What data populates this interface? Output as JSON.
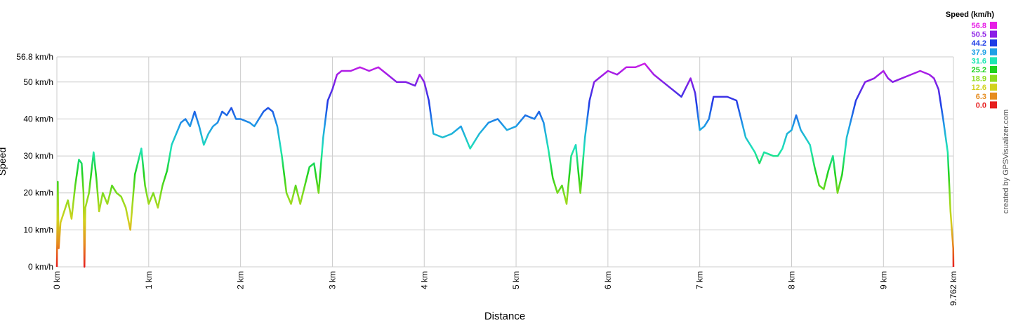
{
  "chart_data": {
    "type": "line",
    "y_label": "Speed",
    "x_label": "Distance",
    "credit": "created by GPSVisualizer.com",
    "legend_title": "Speed (km/h)",
    "legend": [
      {
        "value": 56.8,
        "label": "56.8",
        "color": "#e61ee6"
      },
      {
        "value": 50.5,
        "label": "50.5",
        "color": "#8c1ee6"
      },
      {
        "value": 44.2,
        "label": "44.2",
        "color": "#1e3ce6"
      },
      {
        "value": 37.9,
        "label": "37.9",
        "color": "#1ea0e6"
      },
      {
        "value": 31.6,
        "label": "31.6",
        "color": "#1ee6b4"
      },
      {
        "value": 25.2,
        "label": "25.2",
        "color": "#1ed21e"
      },
      {
        "value": 18.9,
        "label": "18.9",
        "color": "#8cdc1e"
      },
      {
        "value": 12.6,
        "label": "12.6",
        "color": "#d2d21e"
      },
      {
        "value": 6.3,
        "label": "6.3",
        "color": "#e68c1e"
      },
      {
        "value": 0,
        "label": "0.0",
        "color": "#e61e1e"
      }
    ],
    "grid": true,
    "xlim": [
      0,
      9.762
    ],
    "ylim": [
      0,
      56.8
    ],
    "xticks": [
      {
        "value": 0,
        "label": "0 km"
      },
      {
        "value": 1,
        "label": "1 km"
      },
      {
        "value": 2,
        "label": "2 km"
      },
      {
        "value": 3,
        "label": "3 km"
      },
      {
        "value": 4,
        "label": "4 km"
      },
      {
        "value": 5,
        "label": "5 km"
      },
      {
        "value": 6,
        "label": "6 km"
      },
      {
        "value": 7,
        "label": "7 km"
      },
      {
        "value": 8,
        "label": "8 km"
      },
      {
        "value": 9,
        "label": "9 km"
      },
      {
        "value": 9.762,
        "label": "9.762 km"
      }
    ],
    "yticks": [
      {
        "value": 0,
        "label": "0 km/h"
      },
      {
        "value": 10,
        "label": "10 km/h"
      },
      {
        "value": 20,
        "label": "20 km/h"
      },
      {
        "value": 30,
        "label": "30 km/h"
      },
      {
        "value": 40,
        "label": "40 km/h"
      },
      {
        "value": 50,
        "label": "50 km/h"
      },
      {
        "value": 56.8,
        "label": "56.8 km/h"
      }
    ],
    "x": [
      0,
      0.01,
      0.02,
      0.04,
      0.08,
      0.12,
      0.16,
      0.2,
      0.24,
      0.27,
      0.29,
      0.3,
      0.31,
      0.35,
      0.4,
      0.43,
      0.46,
      0.5,
      0.55,
      0.6,
      0.65,
      0.7,
      0.75,
      0.8,
      0.85,
      0.92,
      0.96,
      1,
      1.05,
      1.1,
      1.15,
      1.2,
      1.25,
      1.3,
      1.35,
      1.4,
      1.45,
      1.5,
      1.55,
      1.6,
      1.65,
      1.7,
      1.75,
      1.8,
      1.85,
      1.9,
      1.95,
      2,
      2.1,
      2.15,
      2.2,
      2.25,
      2.3,
      2.35,
      2.4,
      2.45,
      2.5,
      2.55,
      2.6,
      2.65,
      2.7,
      2.75,
      2.8,
      2.85,
      2.9,
      2.95,
      3,
      3.05,
      3.1,
      3.2,
      3.3,
      3.4,
      3.5,
      3.6,
      3.7,
      3.8,
      3.9,
      3.95,
      4,
      4.05,
      4.1,
      4.2,
      4.3,
      4.4,
      4.5,
      4.6,
      4.7,
      4.8,
      4.9,
      5,
      5.1,
      5.2,
      5.25,
      5.3,
      5.35,
      5.4,
      5.45,
      5.5,
      5.55,
      5.6,
      5.65,
      5.7,
      5.75,
      5.8,
      5.85,
      5.9,
      6,
      6.1,
      6.2,
      6.3,
      6.4,
      6.5,
      6.6,
      6.7,
      6.8,
      6.9,
      6.95,
      7,
      7.05,
      7.1,
      7.15,
      7.2,
      7.3,
      7.4,
      7.45,
      7.5,
      7.6,
      7.65,
      7.7,
      7.8,
      7.85,
      7.9,
      7.95,
      8,
      8.05,
      8.1,
      8.15,
      8.2,
      8.25,
      8.3,
      8.35,
      8.4,
      8.45,
      8.5,
      8.55,
      8.6,
      8.7,
      8.8,
      8.9,
      9,
      9.05,
      9.1,
      9.2,
      9.3,
      9.4,
      9.5,
      9.55,
      9.6,
      9.65,
      9.7,
      9.73,
      9.76,
      9.762
    ],
    "values": [
      0,
      23,
      5,
      12,
      15,
      18,
      13,
      22,
      29,
      28,
      20,
      0,
      16,
      20,
      31,
      24,
      15,
      20,
      17,
      22,
      20,
      19,
      16,
      10,
      25,
      32,
      22,
      17,
      20,
      16,
      22,
      26,
      33,
      36,
      39,
      40,
      38,
      42,
      38,
      33,
      36,
      38,
      39,
      42,
      41,
      43,
      40,
      40,
      39,
      38,
      40,
      42,
      43,
      42,
      38,
      30,
      20,
      17,
      22,
      17,
      22,
      27,
      28,
      20,
      35,
      45,
      48,
      52,
      53,
      53,
      54,
      53,
      54,
      52,
      50,
      50,
      49,
      52,
      50,
      45,
      36,
      35,
      36,
      38,
      32,
      36,
      39,
      40,
      37,
      38,
      41,
      40,
      42,
      39,
      32,
      24,
      20,
      22,
      17,
      30,
      33,
      20,
      35,
      45,
      50,
      51,
      53,
      52,
      54,
      54,
      55,
      52,
      50,
      48,
      46,
      51,
      47,
      37,
      38,
      40,
      46,
      46,
      46,
      45,
      40,
      35,
      31,
      28,
      31,
      30,
      30,
      32,
      36,
      37,
      41,
      37,
      35,
      33,
      27,
      22,
      21,
      26,
      30,
      20,
      25,
      35,
      45,
      50,
      51,
      53,
      51,
      50,
      51,
      52,
      53,
      52,
      51,
      48,
      40,
      31,
      15,
      5,
      0
    ]
  }
}
